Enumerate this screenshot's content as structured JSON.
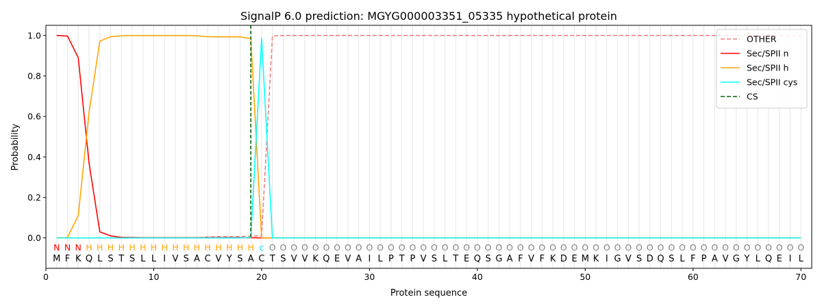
{
  "chart_data": {
    "type": "line",
    "title": "SignalP 6.0 prediction: MGYG000003351_05335 hypothetical protein",
    "xlabel": "Protein sequence",
    "ylabel": "Probability",
    "xlim": [
      0,
      71
    ],
    "ylim": [
      -0.15,
      1.05
    ],
    "xticks": [
      0,
      10,
      20,
      30,
      40,
      50,
      60,
      70
    ],
    "yticks": [
      0.0,
      0.2,
      0.4,
      0.6,
      0.8,
      1.0
    ],
    "grid": "vertical lines at each residue",
    "legend_position": "top-right",
    "sequence": [
      "M",
      "F",
      "K",
      "Q",
      "L",
      "S",
      "T",
      "S",
      "L",
      "L",
      "I",
      "V",
      "S",
      "A",
      "C",
      "V",
      "Y",
      "S",
      "A",
      "C",
      "T",
      "S",
      "V",
      "V",
      "K",
      "Q",
      "E",
      "V",
      "A",
      "I",
      "L",
      "P",
      "T",
      "P",
      "V",
      "S",
      "L",
      "T",
      "E",
      "Q",
      "S",
      "G",
      "A",
      "F",
      "V",
      "F",
      "K",
      "D",
      "E",
      "M",
      "K",
      "I",
      "G",
      "V",
      "S",
      "D",
      "Q",
      "S",
      "L",
      "F",
      "P",
      "A",
      "V",
      "G",
      "Y",
      "L",
      "Q",
      "E",
      "I",
      "L"
    ],
    "region_labels": [
      "N",
      "N",
      "N",
      "H",
      "H",
      "H",
      "H",
      "H",
      "H",
      "H",
      "H",
      "H",
      "H",
      "H",
      "H",
      "H",
      "H",
      "H",
      "H",
      "c",
      "O",
      "O",
      "O",
      "O",
      "O",
      "O",
      "O",
      "O",
      "O",
      "O",
      "O",
      "O",
      "O",
      "O",
      "O",
      "O",
      "O",
      "O",
      "O",
      "O",
      "O",
      "O",
      "O",
      "O",
      "O",
      "O",
      "O",
      "O",
      "O",
      "O",
      "O",
      "O",
      "O",
      "O",
      "O",
      "O",
      "O",
      "O",
      "O",
      "O",
      "O",
      "O",
      "O",
      "O",
      "O",
      "O",
      "O",
      "O",
      "O",
      "O"
    ],
    "region_colors": {
      "N": "#ff0000",
      "H": "#ffa500",
      "c": "#00e5ee",
      "O": "#808080"
    },
    "cleavage_site": 19,
    "series": [
      {
        "name": "OTHER",
        "color": "#f08080",
        "dash": true,
        "values": [
          0.0,
          0.0,
          0.0,
          0.0,
          0.0,
          0.0,
          0.0,
          0.0,
          0.0,
          0.0,
          0.0,
          0.0,
          0.0,
          0.0,
          0.005,
          0.006,
          0.006,
          0.006,
          0.01,
          0.01,
          0.997,
          1.0,
          1.0,
          1.0,
          1.0,
          1.0,
          1.0,
          1.0,
          1.0,
          1.0,
          1.0,
          1.0,
          1.0,
          1.0,
          1.0,
          1.0,
          1.0,
          1.0,
          1.0,
          1.0,
          1.0,
          1.0,
          1.0,
          1.0,
          1.0,
          1.0,
          1.0,
          1.0,
          1.0,
          1.0,
          1.0,
          1.0,
          1.0,
          1.0,
          1.0,
          1.0,
          1.0,
          1.0,
          1.0,
          1.0,
          1.0,
          1.0,
          1.0,
          1.0,
          1.0,
          1.0,
          1.0,
          1.0,
          1.0,
          1.0
        ]
      },
      {
        "name": "Sec/SPII n",
        "color": "#ff0000",
        "dash": false,
        "values": [
          1.0,
          0.997,
          0.89,
          0.37,
          0.03,
          0.01,
          0.003,
          0.002,
          0.001,
          0.001,
          0.001,
          0.001,
          0.001,
          0.001,
          0.001,
          0.001,
          0.001,
          0.001,
          0.001,
          0.0,
          0.0,
          0.0,
          0.0,
          0.0,
          0.0,
          0.0,
          0.0,
          0.0,
          0.0,
          0.0,
          0.0,
          0.0,
          0.0,
          0.0,
          0.0,
          0.0,
          0.0,
          0.0,
          0.0,
          0.0,
          0.0,
          0.0,
          0.0,
          0.0,
          0.0,
          0.0,
          0.0,
          0.0,
          0.0,
          0.0,
          0.0,
          0.0,
          0.0,
          0.0,
          0.0,
          0.0,
          0.0,
          0.0,
          0.0,
          0.0,
          0.0,
          0.0,
          0.0,
          0.0,
          0.0,
          0.0,
          0.0,
          0.0,
          0.0,
          0.0
        ]
      },
      {
        "name": "Sec/SPII h",
        "color": "#ffa500",
        "dash": false,
        "values": [
          0.0,
          0.002,
          0.11,
          0.62,
          0.972,
          0.994,
          0.998,
          0.999,
          0.999,
          0.999,
          0.999,
          0.999,
          0.999,
          0.998,
          0.994,
          0.993,
          0.993,
          0.993,
          0.985,
          0.0,
          0.0,
          0.0,
          0.0,
          0.0,
          0.0,
          0.0,
          0.0,
          0.0,
          0.0,
          0.0,
          0.0,
          0.0,
          0.0,
          0.0,
          0.0,
          0.0,
          0.0,
          0.0,
          0.0,
          0.0,
          0.0,
          0.0,
          0.0,
          0.0,
          0.0,
          0.0,
          0.0,
          0.0,
          0.0,
          0.0,
          0.0,
          0.0,
          0.0,
          0.0,
          0.0,
          0.0,
          0.0,
          0.0,
          0.0,
          0.0,
          0.0,
          0.0,
          0.0,
          0.0,
          0.0,
          0.0,
          0.0,
          0.0,
          0.0,
          0.0
        ]
      },
      {
        "name": "Sec/SPII cys",
        "color": "#00ffff",
        "dash": false,
        "values": [
          0.0,
          0.0,
          0.0,
          0.0,
          0.0,
          0.0,
          0.0,
          0.0,
          0.0,
          0.0,
          0.0,
          0.0,
          0.0,
          0.0,
          0.0,
          0.0,
          0.0,
          0.0,
          0.003,
          0.985,
          0.0,
          0.0,
          0.0,
          0.0,
          0.0,
          0.0,
          0.0,
          0.0,
          0.0,
          0.0,
          0.0,
          0.0,
          0.0,
          0.0,
          0.0,
          0.0,
          0.0,
          0.0,
          0.0,
          0.0,
          0.0,
          0.0,
          0.0,
          0.0,
          0.0,
          0.0,
          0.0,
          0.0,
          0.0,
          0.0,
          0.0,
          0.0,
          0.0,
          0.0,
          0.0,
          0.0,
          0.0,
          0.0,
          0.0,
          0.0,
          0.0,
          0.0,
          0.0,
          0.0,
          0.0,
          0.0,
          0.0,
          0.0,
          0.0,
          0.0
        ]
      }
    ],
    "legend": [
      {
        "label": "OTHER",
        "color": "#f08080",
        "dash": true
      },
      {
        "label": "Sec/SPII n",
        "color": "#ff0000",
        "dash": false
      },
      {
        "label": "Sec/SPII h",
        "color": "#ffa500",
        "dash": false
      },
      {
        "label": "Sec/SPII cys",
        "color": "#00ffff",
        "dash": false
      },
      {
        "label": "CS",
        "color": "#006400",
        "dash": true
      }
    ]
  }
}
